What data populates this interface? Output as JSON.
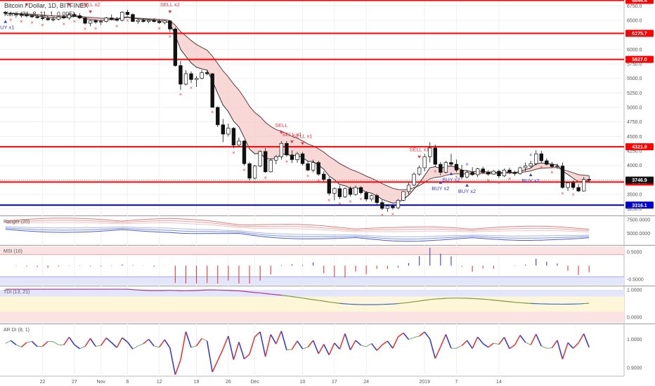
{
  "header": {
    "symbol": "Bitcoin / Dollar, 1D, BITFINEX",
    "indicator": "Kenji (21, 8, 11, 1, 0.005)"
  },
  "colors": {
    "price_line": "#ff0000",
    "support_line": "#0000cc",
    "sell": "#e03c3c",
    "buy": "#3c3ccc",
    "cloud": "#f5c6c6",
    "ma_slow": "#6b3a3a",
    "ma_fast": "#333333",
    "last_price": "#111111"
  },
  "chart_data": [
    {
      "type": "candlestick",
      "panel": "price",
      "x_ticks": [
        "22",
        "27",
        "Nov",
        "6",
        "12",
        "19",
        "26",
        "Dec",
        "10",
        "17",
        "24",
        "2019",
        "7",
        "14"
      ],
      "y_ticks": [
        "6750.0",
        "6500.0",
        "6250.0",
        "6000.0",
        "5750.0",
        "5500.0",
        "5250.0",
        "5000.0",
        "4750.0",
        "4500.0",
        "4250.0",
        "4000.0",
        "3750.0",
        "3500.0",
        "3250.0"
      ],
      "ylim": [
        3150,
        6850
      ],
      "horizontal_levels": [
        {
          "label": "6844.4",
          "value": 6844.4,
          "color": "#ff0000"
        },
        {
          "label": "6275.7",
          "value": 6275.7,
          "color": "#ff0000"
        },
        {
          "label": "5827.0",
          "value": 5827.0,
          "color": "#ff0000"
        },
        {
          "label": "4321.9",
          "value": 4321.9,
          "color": "#ff0000"
        },
        {
          "label": "3714.3",
          "value": 3714.3,
          "color": "#ff0000"
        },
        {
          "label": "3316.1",
          "value": 3316.1,
          "color": "#0000cc"
        }
      ],
      "last_price": {
        "label": "3746.9",
        "value": 3746.9
      },
      "candles": [
        [
          6640,
          6660,
          6600,
          6620
        ],
        [
          6620,
          6650,
          6590,
          6610
        ],
        [
          6610,
          6640,
          6580,
          6600
        ],
        [
          6600,
          6630,
          6560,
          6590
        ],
        [
          6590,
          6620,
          6550,
          6575
        ],
        [
          6575,
          6610,
          6540,
          6560
        ],
        [
          6560,
          6600,
          6530,
          6545
        ],
        [
          6545,
          6580,
          6500,
          6530
        ],
        [
          6530,
          6570,
          6490,
          6510
        ],
        [
          6510,
          6560,
          6480,
          6520
        ],
        [
          6520,
          6580,
          6500,
          6560
        ],
        [
          6560,
          6600,
          6520,
          6540
        ],
        [
          6540,
          6620,
          6510,
          6600
        ],
        [
          6600,
          6640,
          6560,
          6580
        ],
        [
          6580,
          6620,
          6520,
          6540
        ],
        [
          6540,
          6560,
          6430,
          6450
        ],
        [
          6450,
          6500,
          6400,
          6490
        ],
        [
          6490,
          6520,
          6440,
          6470
        ],
        [
          6470,
          6510,
          6420,
          6480
        ],
        [
          6480,
          6560,
          6460,
          6540
        ],
        [
          6540,
          6600,
          6500,
          6520
        ],
        [
          6520,
          6560,
          6480,
          6500
        ],
        [
          6500,
          6660,
          6480,
          6640
        ],
        [
          6640,
          6680,
          6580,
          6600
        ],
        [
          6600,
          6620,
          6470,
          6480
        ],
        [
          6480,
          6520,
          6440,
          6500
        ],
        [
          6500,
          6540,
          6460,
          6480
        ],
        [
          6480,
          6520,
          6450,
          6500
        ],
        [
          6500,
          6540,
          6460,
          6480
        ],
        [
          6480,
          6520,
          6440,
          6460
        ],
        [
          6460,
          6500,
          6430,
          6490
        ],
        [
          6490,
          6500,
          6300,
          6350
        ],
        [
          6350,
          6380,
          5700,
          5720
        ],
        [
          5720,
          5800,
          5300,
          5400
        ],
        [
          5400,
          5640,
          5380,
          5580
        ],
        [
          5580,
          5620,
          5420,
          5480
        ],
        [
          5480,
          5540,
          5350,
          5500
        ],
        [
          5500,
          5640,
          5480,
          5600
        ],
        [
          5600,
          5650,
          5550,
          5580
        ],
        [
          5580,
          5590,
          5000,
          5000
        ],
        [
          5000,
          5020,
          4660,
          4700
        ],
        [
          4700,
          4800,
          4400,
          4540
        ],
        [
          4540,
          4720,
          4500,
          4640
        ],
        [
          4640,
          4660,
          4300,
          4350
        ],
        [
          4350,
          4480,
          4320,
          4420
        ],
        [
          4420,
          4440,
          4000,
          4030
        ],
        [
          4030,
          4060,
          3740,
          3780
        ],
        [
          3780,
          4010,
          3760,
          3990
        ],
        [
          3990,
          4260,
          3970,
          4240
        ],
        [
          4240,
          4300,
          3870,
          3890
        ],
        [
          3890,
          4120,
          3880,
          4090
        ],
        [
          4090,
          4180,
          4020,
          4150
        ],
        [
          4150,
          4420,
          4100,
          4380
        ],
        [
          4380,
          4420,
          4150,
          4180
        ],
        [
          4180,
          4260,
          4040,
          4100
        ],
        [
          4100,
          4230,
          4050,
          4200
        ],
        [
          4200,
          4230,
          4000,
          4030
        ],
        [
          4030,
          4070,
          3900,
          3920
        ],
        [
          3920,
          4100,
          3880,
          4050
        ],
        [
          4050,
          4080,
          3820,
          3850
        ],
        [
          3850,
          3900,
          3720,
          3760
        ],
        [
          3760,
          3800,
          3480,
          3520
        ],
        [
          3520,
          3620,
          3400,
          3600
        ],
        [
          3600,
          3650,
          3420,
          3460
        ],
        [
          3460,
          3620,
          3440,
          3600
        ],
        [
          3600,
          3640,
          3460,
          3500
        ],
        [
          3500,
          3650,
          3480,
          3620
        ],
        [
          3620,
          3640,
          3500,
          3530
        ],
        [
          3530,
          3560,
          3380,
          3420
        ],
        [
          3420,
          3500,
          3380,
          3480
        ],
        [
          3480,
          3510,
          3320,
          3360
        ],
        [
          3360,
          3400,
          3230,
          3260
        ],
        [
          3260,
          3330,
          3200,
          3300
        ],
        [
          3300,
          3330,
          3240,
          3270
        ],
        [
          3270,
          3420,
          3250,
          3400
        ],
        [
          3400,
          3560,
          3380,
          3550
        ],
        [
          3550,
          3700,
          3500,
          3660
        ],
        [
          3660,
          3880,
          3640,
          3850
        ],
        [
          3850,
          4000,
          3820,
          3960
        ],
        [
          3960,
          4200,
          3900,
          4150
        ],
        [
          4150,
          4400,
          4050,
          4300
        ],
        [
          4300,
          4360,
          3980,
          4020
        ],
        [
          4020,
          4060,
          3830,
          3880
        ],
        [
          3880,
          4080,
          3860,
          4050
        ],
        [
          4050,
          4200,
          3980,
          4020
        ],
        [
          4020,
          4100,
          3880,
          3920
        ],
        [
          3920,
          4010,
          3760,
          3800
        ],
        [
          3800,
          3920,
          3780,
          3880
        ],
        [
          3880,
          3970,
          3820,
          3840
        ],
        [
          3840,
          3960,
          3800,
          3940
        ],
        [
          3940,
          3980,
          3860,
          3880
        ],
        [
          3880,
          3920,
          3820,
          3850
        ],
        [
          3850,
          3920,
          3840,
          3900
        ],
        [
          3900,
          3930,
          3780,
          3820
        ],
        [
          3820,
          3950,
          3800,
          3920
        ],
        [
          3920,
          3960,
          3850,
          3880
        ],
        [
          3880,
          3910,
          3820,
          3860
        ],
        [
          3860,
          3980,
          3840,
          3960
        ],
        [
          3960,
          4050,
          3900,
          3990
        ],
        [
          3990,
          4080,
          3960,
          4030
        ],
        [
          4030,
          4260,
          4000,
          4200
        ],
        [
          4200,
          4250,
          4050,
          4080
        ],
        [
          4080,
          4120,
          4000,
          4020
        ],
        [
          4020,
          4060,
          3960,
          3980
        ],
        [
          3980,
          4030,
          3940,
          3990
        ],
        [
          3990,
          4050,
          3600,
          3620
        ],
        [
          3620,
          3720,
          3560,
          3700
        ],
        [
          3700,
          3740,
          3580,
          3620
        ],
        [
          3620,
          3680,
          3540,
          3560
        ],
        [
          3560,
          3800,
          3550,
          3760
        ],
        [
          3760,
          3820,
          3700,
          3747
        ]
      ],
      "markers": [
        {
          "i": 4,
          "side": "sell",
          "text": "SELL x1"
        },
        {
          "i": 12,
          "side": "sell",
          "text": "SELL x1"
        },
        {
          "i": 16,
          "side": "sell",
          "text": "SELL x2"
        },
        {
          "i": 31,
          "side": "sell",
          "text": "SELL x2"
        },
        {
          "i": 52,
          "side": "sell",
          "text": "SELL"
        },
        {
          "i": 54,
          "side": "sell",
          "text": "SELL x1"
        },
        {
          "i": 56,
          "side": "sell",
          "text": "SELL x1"
        },
        {
          "i": 78,
          "side": "sell",
          "text": "SELL x1"
        },
        {
          "i": 82,
          "side": "buy",
          "text": "BUY x2"
        },
        {
          "i": 84,
          "side": "buy",
          "text": "BUY x2"
        },
        {
          "i": 87,
          "side": "buy",
          "text": "BUY x2"
        },
        {
          "i": 99,
          "side": "buy",
          "text": "BUY x2"
        },
        {
          "i": 0,
          "side": "buy",
          "text": "BUY x1"
        }
      ]
    },
    {
      "type": "line",
      "panel": "ranger",
      "title": "Ranger (20)",
      "y_ticks": [
        "7500.0000",
        "5000.0000"
      ],
      "ylim": [
        3000,
        8000
      ]
    },
    {
      "type": "bar",
      "panel": "msi",
      "title": "MSI (10)",
      "y_ticks": [
        "0.5000",
        "-0.5000"
      ],
      "ylim": [
        -0.7,
        0.7
      ]
    },
    {
      "type": "line",
      "panel": "tdi",
      "title": "TDI (13, 21)",
      "y_ticks": [
        "1.0000",
        "0.0000"
      ],
      "ylim": [
        -0.2,
        1.1
      ]
    },
    {
      "type": "line",
      "panel": "ardi",
      "title": "AR DI (8, 1)",
      "y_ticks": [
        "1.0000",
        "0.9000"
      ],
      "ylim": [
        0.87,
        1.05
      ]
    }
  ]
}
